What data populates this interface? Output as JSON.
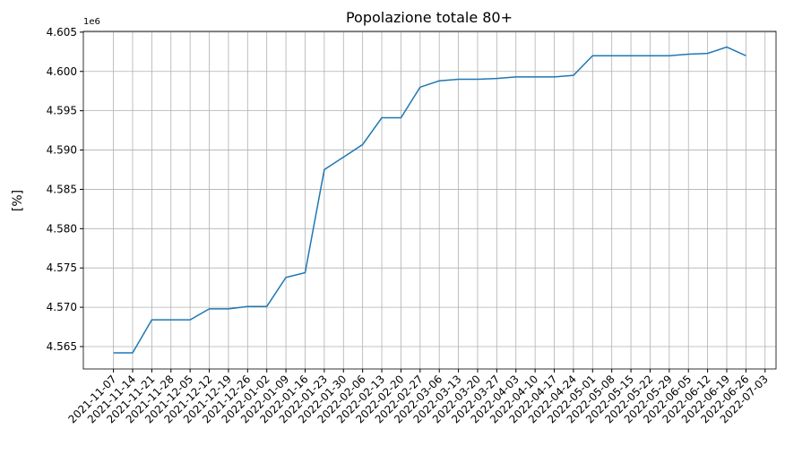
{
  "chart_data": {
    "type": "line",
    "title": "Popolazione totale 80+",
    "ylabel": "[%]",
    "y_offset_label": "1e6",
    "x": [
      "2021-11-07",
      "2021-11-14",
      "2021-11-21",
      "2021-11-28",
      "2021-12-05",
      "2021-12-12",
      "2021-12-19",
      "2021-12-26",
      "2022-01-02",
      "2022-01-09",
      "2022-01-16",
      "2022-01-23",
      "2022-01-30",
      "2022-02-06",
      "2022-02-13",
      "2022-02-20",
      "2022-02-27",
      "2022-03-06",
      "2022-03-13",
      "2022-03-20",
      "2022-03-27",
      "2022-04-03",
      "2022-04-10",
      "2022-04-17",
      "2022-04-24",
      "2022-05-01",
      "2022-05-08",
      "2022-05-15",
      "2022-05-22",
      "2022-05-29",
      "2022-06-05",
      "2022-06-12",
      "2022-06-19",
      "2022-06-26"
    ],
    "series": [
      {
        "color": "#1f77b4",
        "values": [
          4.5642,
          4.5642,
          4.5684,
          4.5684,
          4.5684,
          4.5698,
          4.5698,
          4.5701,
          4.5701,
          4.5738,
          4.5744,
          4.5875,
          4.5891,
          4.5907,
          4.5941,
          4.5941,
          4.598,
          4.5988,
          4.599,
          4.599,
          4.5991,
          4.5993,
          4.5993,
          4.5993,
          4.5995,
          4.602,
          4.602,
          4.602,
          4.602,
          4.602,
          4.6022,
          4.6023,
          4.6031,
          4.602
        ]
      }
    ],
    "xlim": [
      "2021-10-27",
      "2022-07-07"
    ],
    "xticks": [
      "2021-11-07",
      "2021-11-14",
      "2021-11-21",
      "2021-11-28",
      "2021-12-05",
      "2021-12-12",
      "2021-12-19",
      "2021-12-26",
      "2022-01-02",
      "2022-01-09",
      "2022-01-16",
      "2022-01-23",
      "2022-01-30",
      "2022-02-06",
      "2022-02-13",
      "2022-02-20",
      "2022-02-27",
      "2022-03-06",
      "2022-03-13",
      "2022-03-20",
      "2022-03-27",
      "2022-04-03",
      "2022-04-10",
      "2022-04-17",
      "2022-04-24",
      "2022-05-01",
      "2022-05-08",
      "2022-05-15",
      "2022-05-22",
      "2022-05-29",
      "2022-06-05",
      "2022-06-12",
      "2022-06-19",
      "2022-06-26",
      "2022-07-03"
    ],
    "ylim": [
      4.56215,
      4.6051
    ],
    "yticks": [
      {
        "value": 4.565,
        "label": "4.565"
      },
      {
        "value": 4.57,
        "label": "4.570"
      },
      {
        "value": 4.575,
        "label": "4.575"
      },
      {
        "value": 4.58,
        "label": "4.580"
      },
      {
        "value": 4.585,
        "label": "4.585"
      },
      {
        "value": 4.59,
        "label": "4.590"
      },
      {
        "value": 4.595,
        "label": "4.595"
      },
      {
        "value": 4.6,
        "label": "4.600"
      },
      {
        "value": 4.605,
        "label": "4.605"
      }
    ],
    "grid": true
  }
}
